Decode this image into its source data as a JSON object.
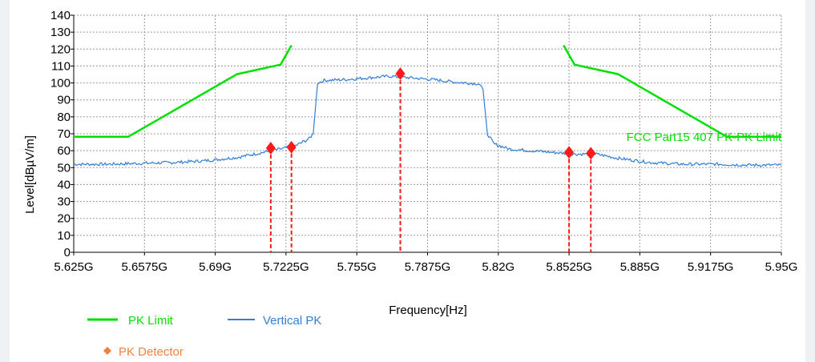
{
  "chart_data": {
    "type": "line",
    "xlabel": "Frequency[Hz]",
    "ylabel": "Level[dBµV/m]",
    "xlim": [
      5.625,
      5.95
    ],
    "ylim": [
      0,
      140
    ],
    "grid": true,
    "x_ticks": [
      {
        "value": 5.625,
        "label": "5.625G"
      },
      {
        "value": 5.6575,
        "label": "5.6575G"
      },
      {
        "value": 5.69,
        "label": "5.69G"
      },
      {
        "value": 5.7225,
        "label": "5.7225G"
      },
      {
        "value": 5.755,
        "label": "5.755G"
      },
      {
        "value": 5.7875,
        "label": "5.7875G"
      },
      {
        "value": 5.82,
        "label": "5.82G"
      },
      {
        "value": 5.8525,
        "label": "5.8525G"
      },
      {
        "value": 5.885,
        "label": "5.885G"
      },
      {
        "value": 5.9175,
        "label": "5.9175G"
      },
      {
        "value": 5.95,
        "label": "5.95G"
      }
    ],
    "y_ticks": [
      0,
      10,
      20,
      30,
      40,
      50,
      60,
      70,
      80,
      90,
      100,
      110,
      120,
      130,
      140
    ],
    "series": [
      {
        "name": "PK Limit",
        "color": "#00e000",
        "segments": [
          [
            [
              5.625,
              68.2
            ],
            [
              5.65,
              68.2
            ],
            [
              5.7,
              105.2
            ],
            [
              5.72,
              110.8
            ],
            [
              5.725,
              122.2
            ]
          ],
          [
            [
              5.85,
              122.2
            ],
            [
              5.855,
              110.8
            ],
            [
              5.875,
              105.2
            ],
            [
              5.925,
              68.2
            ],
            [
              5.95,
              68.2
            ]
          ]
        ]
      },
      {
        "name": "Vertical PK",
        "color": "#2f7fd6",
        "points": [
          [
            5.625,
            52
          ],
          [
            5.64,
            52
          ],
          [
            5.655,
            52.5
          ],
          [
            5.67,
            53
          ],
          [
            5.685,
            54
          ],
          [
            5.7,
            56
          ],
          [
            5.71,
            58.5
          ],
          [
            5.72,
            61
          ],
          [
            5.727,
            63
          ],
          [
            5.733,
            67
          ],
          [
            5.735,
            70
          ],
          [
            5.737,
            100
          ],
          [
            5.74,
            101.5
          ],
          [
            5.75,
            102
          ],
          [
            5.76,
            103
          ],
          [
            5.77,
            104
          ],
          [
            5.78,
            103
          ],
          [
            5.79,
            102
          ],
          [
            5.8,
            100.5
          ],
          [
            5.811,
            99.5
          ],
          [
            5.813,
            96
          ],
          [
            5.815,
            70
          ],
          [
            5.818,
            64
          ],
          [
            5.825,
            61
          ],
          [
            5.835,
            60
          ],
          [
            5.845,
            59
          ],
          [
            5.855,
            58
          ],
          [
            5.865,
            58
          ],
          [
            5.875,
            55.5
          ],
          [
            5.89,
            53
          ],
          [
            5.905,
            52
          ],
          [
            5.92,
            52
          ],
          [
            5.935,
            51.5
          ],
          [
            5.95,
            51.5
          ]
        ]
      }
    ],
    "markers": {
      "name": "PK Detector",
      "color": "#ff1a1a",
      "points": [
        [
          5.7155,
          61.5
        ],
        [
          5.725,
          62
        ],
        [
          5.775,
          105.5
        ],
        [
          5.8525,
          59
        ],
        [
          5.8625,
          58.5
        ]
      ]
    },
    "annotation": "FCC Part15 407 PK-PK Limit",
    "legend_position": "bottom-left"
  }
}
